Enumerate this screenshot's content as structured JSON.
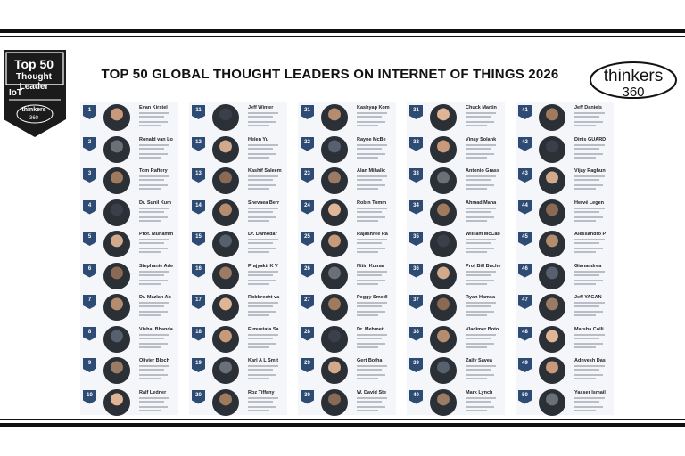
{
  "badge": {
    "line1": "Top 50",
    "line2": "Thought Leader",
    "line3": "IoT",
    "logo_top": "thinkers",
    "logo_bottom": "360"
  },
  "title": "TOP 50 GLOBAL THOUGHT LEADERS ON INTERNET OF THINGS 2026",
  "logo": {
    "word": "thinkers",
    "number": "360"
  },
  "columns": [
    [
      {
        "rank": "1",
        "name": "Evan Kirstel"
      },
      {
        "rank": "2",
        "name": "Ronald van Lo"
      },
      {
        "rank": "3",
        "name": "Tom Raftery"
      },
      {
        "rank": "4",
        "name": "Dr. Sunil Kum"
      },
      {
        "rank": "5",
        "name": "Prof. Muhamm"
      },
      {
        "rank": "6",
        "name": "Stephanie Ade"
      },
      {
        "rank": "7",
        "name": "Dr. Mazlan Ab"
      },
      {
        "rank": "8",
        "name": "Vishal Bhanda"
      },
      {
        "rank": "9",
        "name": "Olivier Bloch"
      },
      {
        "rank": "10",
        "name": "Ralf Ledner"
      }
    ],
    [
      {
        "rank": "11",
        "name": "Jeff Winter"
      },
      {
        "rank": "12",
        "name": "Helen Yu"
      },
      {
        "rank": "13",
        "name": "Kashif Saleem"
      },
      {
        "rank": "14",
        "name": "Shevaea Berr"
      },
      {
        "rank": "15",
        "name": "Dr. Damodar"
      },
      {
        "rank": "16",
        "name": "Prajyakti K V"
      },
      {
        "rank": "17",
        "name": "Robbrecht va"
      },
      {
        "rank": "18",
        "name": "Elmustafa Sa"
      },
      {
        "rank": "19",
        "name": "Karl A L Smit"
      },
      {
        "rank": "20",
        "name": "Roz Tiffany"
      }
    ],
    [
      {
        "rank": "21",
        "name": "Kashyap Kom"
      },
      {
        "rank": "22",
        "name": "Rayne McBe"
      },
      {
        "rank": "23",
        "name": "Alan Mihalic"
      },
      {
        "rank": "24",
        "name": "Robin Tomm"
      },
      {
        "rank": "25",
        "name": "Rajashree Ra"
      },
      {
        "rank": "26",
        "name": "Nitin Kumar"
      },
      {
        "rank": "27",
        "name": "Peggy Smedl"
      },
      {
        "rank": "28",
        "name": "Dr. Mehmet"
      },
      {
        "rank": "29",
        "name": "Gert Botha"
      },
      {
        "rank": "30",
        "name": "W. David Ste"
      }
    ],
    [
      {
        "rank": "31",
        "name": "Chuck Martin"
      },
      {
        "rank": "32",
        "name": "Vinay Solank"
      },
      {
        "rank": "33",
        "name": "Antonio Grass"
      },
      {
        "rank": "34",
        "name": "Ahmad Maha"
      },
      {
        "rank": "35",
        "name": "William McCab"
      },
      {
        "rank": "36",
        "name": "Prof Bill Buche"
      },
      {
        "rank": "37",
        "name": "Ryan Hamsa"
      },
      {
        "rank": "38",
        "name": "Vladimer Boto"
      },
      {
        "rank": "39",
        "name": "Zaily Savea"
      },
      {
        "rank": "40",
        "name": "Mark Lynch"
      }
    ],
    [
      {
        "rank": "41",
        "name": "Jeff Daniels"
      },
      {
        "rank": "42",
        "name": "Dinis GUARD"
      },
      {
        "rank": "43",
        "name": "Vijay Raghun"
      },
      {
        "rank": "44",
        "name": "Hervé Legen"
      },
      {
        "rank": "45",
        "name": "Alessandro P"
      },
      {
        "rank": "46",
        "name": "Gianandrea"
      },
      {
        "rank": "47",
        "name": "Jeff YAGAN"
      },
      {
        "rank": "48",
        "name": "Marsha Colli"
      },
      {
        "rank": "49",
        "name": "Adnyesh Das"
      },
      {
        "rank": "50",
        "name": "Yasser Ismail"
      }
    ]
  ]
}
